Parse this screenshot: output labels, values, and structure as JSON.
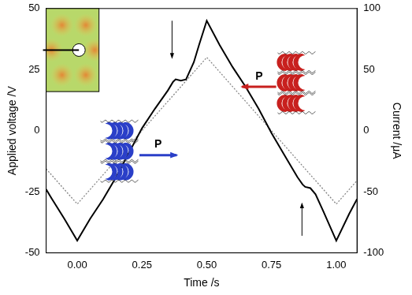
{
  "chart_data": {
    "type": "line",
    "x_label": "Time /s",
    "y_label": "Applied voltage /V",
    "y2_label": "Current /μA",
    "xlim": [
      -0.12,
      1.08
    ],
    "xticks": [
      {
        "value": 0,
        "label": "0.00"
      },
      {
        "value": 0.25,
        "label": "0.25"
      },
      {
        "value": 0.5,
        "label": "0.50"
      },
      {
        "value": 0.75,
        "label": "0.75"
      },
      {
        "value": 1,
        "label": "1.00"
      }
    ],
    "ylim": [
      -50,
      50
    ],
    "yticks": [
      -50,
      -25,
      0,
      25,
      50
    ],
    "y2lim": [
      -100,
      100
    ],
    "y2ticks": [
      -100,
      -50,
      0,
      50,
      100
    ],
    "grid": false,
    "annotations": [
      "P",
      "P"
    ],
    "series": [
      {
        "name": "Current",
        "axis": "y2",
        "color": "#000000",
        "line_style": "solid",
        "x": [
          -0.12,
          -0.1,
          -0.05,
          0,
          0.05,
          0.1,
          0.15,
          0.2,
          0.25,
          0.3,
          0.35,
          0.37,
          0.38,
          0.4,
          0.42,
          0.45,
          0.47,
          0.5,
          0.55,
          0.6,
          0.65,
          0.7,
          0.75,
          0.8,
          0.85,
          0.87,
          0.88,
          0.9,
          0.92,
          0.95,
          1.0,
          1.05,
          1.08
        ],
        "values": [
          -48,
          -55,
          -72,
          -90,
          -72,
          -56,
          -38,
          -18,
          2,
          18,
          33,
          40,
          42,
          41,
          42,
          56,
          70,
          90,
          70,
          52,
          36,
          18,
          -2,
          -20,
          -38,
          -44,
          -46,
          -47,
          -52,
          -66,
          -90,
          -68,
          -56
        ]
      },
      {
        "name": "Applied voltage",
        "axis": "y",
        "color": "#808080",
        "line_style": "dotted",
        "x": [
          -0.12,
          0,
          0.5,
          1.0,
          1.08
        ],
        "values": [
          -15.6,
          -30,
          30,
          -30,
          -20.4
        ]
      }
    ]
  }
}
